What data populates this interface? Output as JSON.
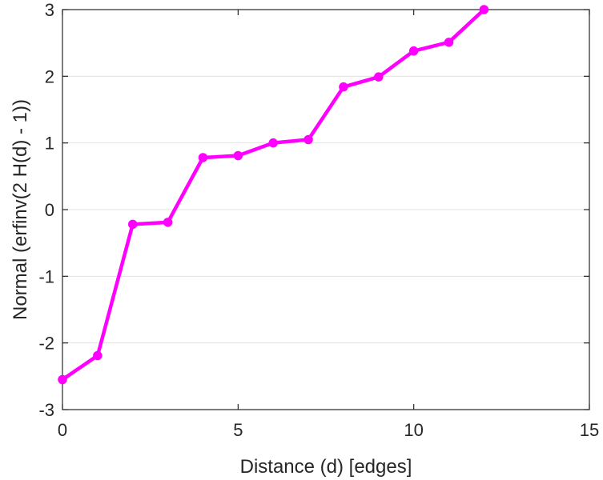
{
  "chart_data": {
    "type": "line",
    "title": "",
    "xlabel": "Distance (d) [edges]",
    "ylabel": "Normal (erfinv(2 H(d) - 1))",
    "xlim": [
      0,
      15
    ],
    "ylim": [
      -3,
      3
    ],
    "xticks": [
      0,
      5,
      10,
      15
    ],
    "yticks": [
      -3,
      -2,
      -1,
      0,
      1,
      2,
      3
    ],
    "xtick_labels": [
      "0",
      "5",
      "10",
      "15"
    ],
    "ytick_labels": [
      "-3",
      "-2",
      "-1",
      "0",
      "1",
      "2",
      "3"
    ],
    "grid": "horizontal",
    "legend": "none",
    "series": [
      {
        "color": "#ff00ff",
        "marker": "circle",
        "x": [
          0,
          1,
          2,
          3,
          4,
          5,
          6,
          7,
          8,
          9,
          10,
          11,
          12
        ],
        "y": [
          -2.55,
          -2.19,
          -0.22,
          -0.19,
          0.78,
          0.81,
          1.0,
          1.05,
          1.84,
          1.99,
          2.38,
          2.51,
          3.0
        ]
      }
    ]
  }
}
